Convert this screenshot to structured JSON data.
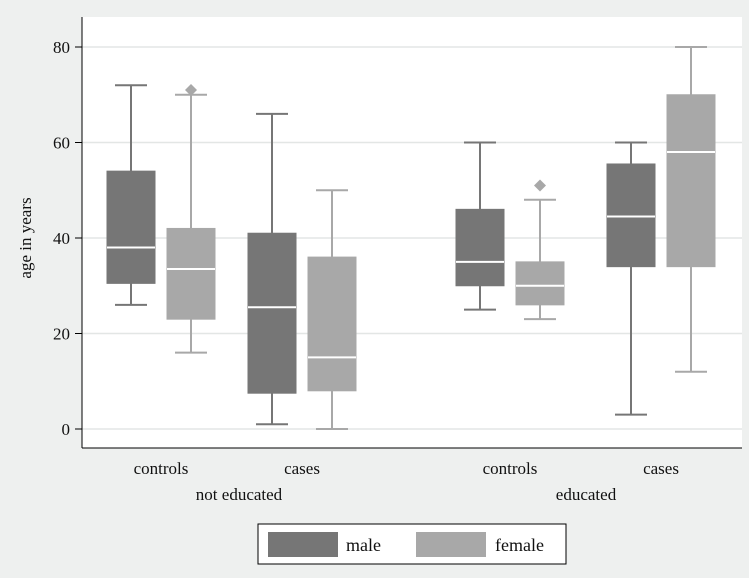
{
  "chart_data": {
    "type": "box",
    "ylabel": "age in years",
    "ylim": [
      0,
      80
    ],
    "yticks": [
      0,
      20,
      40,
      60,
      80
    ],
    "grid": true,
    "legend_position": "bottom",
    "groups": [
      {
        "label": "not educated",
        "categories": [
          "controls",
          "cases"
        ]
      },
      {
        "label": "educated",
        "categories": [
          "controls",
          "cases"
        ]
      }
    ],
    "series": [
      {
        "name": "male",
        "color": "#767676"
      },
      {
        "name": "female",
        "color": "#a8a8a8"
      }
    ],
    "boxes": [
      {
        "group": "not educated",
        "category": "controls",
        "series": "male",
        "whisker_low": 26,
        "q1": 30.5,
        "median": 38,
        "q3": 54,
        "whisker_high": 72,
        "outliers": []
      },
      {
        "group": "not educated",
        "category": "controls",
        "series": "female",
        "whisker_low": 16,
        "q1": 23,
        "median": 33.5,
        "q3": 42,
        "whisker_high": 70,
        "outliers": [
          71
        ]
      },
      {
        "group": "not educated",
        "category": "cases",
        "series": "male",
        "whisker_low": 1,
        "q1": 7.5,
        "median": 25.5,
        "q3": 41,
        "whisker_high": 66,
        "outliers": []
      },
      {
        "group": "not educated",
        "category": "cases",
        "series": "female",
        "whisker_low": 0,
        "q1": 8,
        "median": 15,
        "q3": 36,
        "whisker_high": 50,
        "outliers": []
      },
      {
        "group": "educated",
        "category": "controls",
        "series": "male",
        "whisker_low": 25,
        "q1": 30,
        "median": 35,
        "q3": 46,
        "whisker_high": 60,
        "outliers": []
      },
      {
        "group": "educated",
        "category": "controls",
        "series": "female",
        "whisker_low": 23,
        "q1": 26,
        "median": 30,
        "q3": 35,
        "whisker_high": 48,
        "outliers": [
          51
        ]
      },
      {
        "group": "educated",
        "category": "cases",
        "series": "male",
        "whisker_low": 3,
        "q1": 34,
        "median": 44.5,
        "q3": 55.5,
        "whisker_high": 60,
        "outliers": []
      },
      {
        "group": "educated",
        "category": "cases",
        "series": "female",
        "whisker_low": 12,
        "q1": 34,
        "median": 58,
        "q3": 70,
        "whisker_high": 80,
        "outliers": []
      }
    ]
  }
}
